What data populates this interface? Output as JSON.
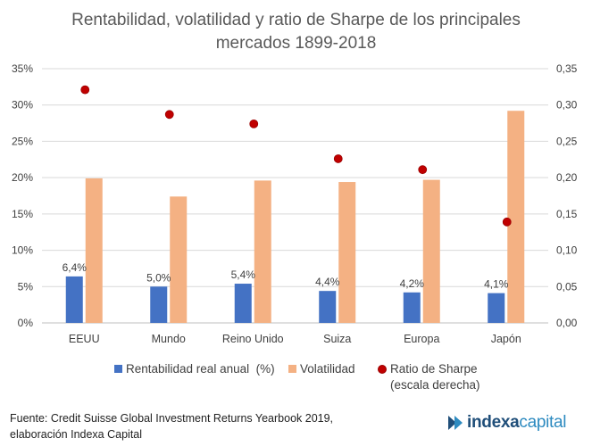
{
  "title_line1": "Rentabilidad, volatilidad y ratio de Sharpe de los principales",
  "title_line2": "mercados 1899-2018",
  "footer_line1": "Fuente: Credit Suisse Global Investment Returns Yearbook 2019,",
  "footer_line2": "elaboración Indexa Capital",
  "logo_part1": "indexa",
  "logo_part2": "capital",
  "colors": {
    "rentabilidad": "#4472c4",
    "volatilidad": "#f4b183",
    "sharpe": "#c00000",
    "grid": "#d9d9d9",
    "logo_dark": "#1f4e79",
    "logo_light": "#2e8bc0"
  },
  "chart_data": {
    "type": "bar",
    "categories": [
      "EEUU",
      "Mundo",
      "Reino Unido",
      "Suiza",
      "Europa",
      "Japón"
    ],
    "series": [
      {
        "name": "Rentabilidad real anual  (%)",
        "kind": "bar",
        "axis": "left",
        "values": [
          6.4,
          5.0,
          5.4,
          4.4,
          4.2,
          4.1
        ],
        "labels": [
          "6,4%",
          "5,0%",
          "5,4%",
          "4,4%",
          "4,2%",
          "4,1%"
        ]
      },
      {
        "name": "Volatilidad",
        "kind": "bar",
        "axis": "left",
        "values": [
          19.9,
          17.4,
          19.6,
          19.4,
          19.7,
          29.2
        ]
      },
      {
        "name": "Ratio de Sharpe",
        "name_line2": "(escala derecha)",
        "kind": "scatter",
        "axis": "right",
        "values": [
          0.321,
          0.287,
          0.274,
          0.226,
          0.211,
          0.139
        ]
      }
    ],
    "left_axis": {
      "min": 0,
      "max": 35,
      "step": 5,
      "tick_labels": [
        "0%",
        "5%",
        "10%",
        "15%",
        "20%",
        "25%",
        "30%",
        "35%"
      ]
    },
    "right_axis": {
      "min": 0,
      "max": 0.35,
      "step": 0.05,
      "tick_labels": [
        "0,00",
        "0,05",
        "0,10",
        "0,15",
        "0,20",
        "0,25",
        "0,30",
        "0,35"
      ]
    },
    "grid": true,
    "legend_position": "bottom"
  }
}
